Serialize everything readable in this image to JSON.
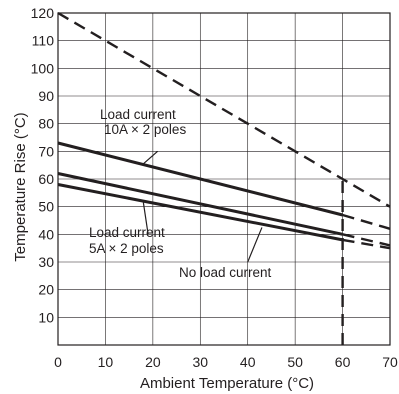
{
  "chart_data": {
    "type": "line",
    "xlabel": "Ambient Temperature (°C)",
    "ylabel": "Temperature Rise (°C)",
    "xlim": [
      0,
      70
    ],
    "ylim": [
      0,
      120
    ],
    "x_ticks": [
      0,
      10,
      20,
      30,
      40,
      50,
      60,
      70
    ],
    "y_ticks": [
      10,
      20,
      30,
      40,
      50,
      60,
      70,
      80,
      90,
      100,
      110,
      120
    ],
    "x_tick_labels": [
      "0",
      "10",
      "20",
      "30",
      "40",
      "50",
      "60",
      "70"
    ],
    "y_tick_labels": [
      "10",
      "20",
      "30",
      "40",
      "50",
      "60",
      "70",
      "80",
      "90",
      "100",
      "110",
      "120"
    ],
    "grid": true,
    "line_color": "#231f20",
    "series": [
      {
        "key": "load10",
        "style": "solid",
        "x": [
          0,
          60
        ],
        "y": [
          73,
          47
        ]
      },
      {
        "key": "load5",
        "style": "solid",
        "x": [
          0,
          60
        ],
        "y": [
          62,
          40
        ]
      },
      {
        "key": "noload",
        "style": "solid",
        "x": [
          0,
          60
        ],
        "y": [
          58,
          38
        ]
      },
      {
        "key": "limit",
        "style": "dashed",
        "x": [
          0,
          60,
          60,
          70
        ],
        "y": [
          120,
          60,
          60,
          50
        ]
      },
      {
        "key": "load10_ext",
        "style": "dashed",
        "x": [
          60,
          70
        ],
        "y": [
          47,
          42
        ]
      },
      {
        "key": "load5_ext",
        "style": "dashed",
        "x": [
          60,
          70
        ],
        "y": [
          40,
          36
        ]
      },
      {
        "key": "noload_ext",
        "style": "dashed",
        "x": [
          60,
          70
        ],
        "y": [
          38,
          35
        ]
      },
      {
        "key": "vline60",
        "style": "dashed",
        "x": [
          60,
          60
        ],
        "y": [
          0,
          60
        ]
      }
    ],
    "annotations": [
      {
        "key": "load10",
        "lines": [
          "Load current",
          "10A × 2 poles"
        ],
        "point": [
          21,
          70
        ],
        "pointer_to": [
          18,
          65.5
        ]
      },
      {
        "key": "load5",
        "lines": [
          "Load current",
          "5A × 2 poles"
        ],
        "point": [
          19,
          40
        ],
        "pointer_to": [
          18,
          51.5
        ]
      },
      {
        "key": "noload",
        "lines": [
          "No load current"
        ],
        "point": [
          40,
          30
        ],
        "pointer_to": [
          43,
          42.5
        ]
      }
    ]
  }
}
